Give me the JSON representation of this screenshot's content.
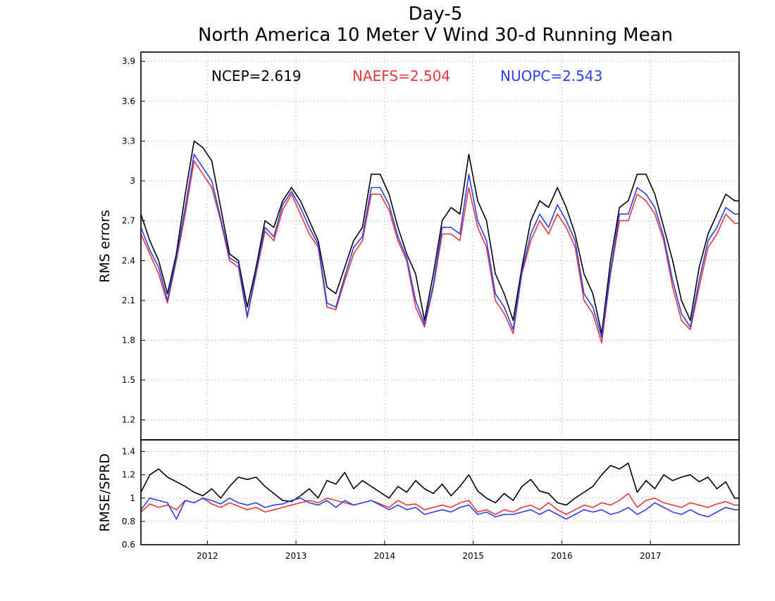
{
  "chart_data": [
    {
      "type": "line",
      "title": "Day-5",
      "subtitle": "North America 10 Meter V Wind 30-d Running Mean",
      "ylabel": "RMS errors",
      "ylim": [
        1.05,
        3.97
      ],
      "yticks": [
        1.2,
        1.5,
        1.8,
        2.1,
        2.4,
        2.7,
        3.0,
        3.3,
        3.6,
        3.9
      ],
      "ytick_labels": [
        "1.2",
        "1.5",
        "1.8",
        "2.1",
        "2.4",
        "2.7",
        "3",
        "3.3",
        "3.6",
        "3.9"
      ],
      "xlim": [
        2011.25,
        2018.0
      ],
      "grid": true,
      "legend_placement": "top (inside plot)",
      "legend": [
        {
          "label": "NCEP=2.619",
          "color": "#000000"
        },
        {
          "label": "NAEFS=2.504",
          "color": "#e8373a"
        },
        {
          "label": "NUOPC=2.543",
          "color": "#2a3ff0"
        }
      ],
      "series": [
        {
          "color": "#000000",
          "x": [
            2011.25,
            2011.35,
            2011.45,
            2011.55,
            2011.65,
            2011.75,
            2011.85,
            2011.95,
            2012.05,
            2012.15,
            2012.25,
            2012.35,
            2012.45,
            2012.55,
            2012.65,
            2012.75,
            2012.85,
            2012.95,
            2013.05,
            2013.15,
            2013.25,
            2013.35,
            2013.45,
            2013.55,
            2013.65,
            2013.75,
            2013.85,
            2013.95,
            2014.05,
            2014.15,
            2014.25,
            2014.35,
            2014.45,
            2014.55,
            2014.65,
            2014.75,
            2014.85,
            2014.95,
            2015.05,
            2015.15,
            2015.25,
            2015.35,
            2015.45,
            2015.55,
            2015.65,
            2015.75,
            2015.85,
            2015.95,
            2016.05,
            2016.15,
            2016.25,
            2016.35,
            2016.45,
            2016.55,
            2016.65,
            2016.75,
            2016.85,
            2016.95,
            2017.05,
            2017.15,
            2017.25,
            2017.35,
            2017.45,
            2017.55,
            2017.65,
            2017.75,
            2017.85,
            2017.95,
            2018.0
          ],
          "y": [
            2.75,
            2.55,
            2.4,
            2.15,
            2.45,
            2.9,
            3.3,
            3.25,
            3.15,
            2.8,
            2.45,
            2.4,
            2.05,
            2.35,
            2.7,
            2.65,
            2.85,
            2.95,
            2.85,
            2.7,
            2.55,
            2.2,
            2.15,
            2.35,
            2.55,
            2.65,
            3.05,
            3.05,
            2.9,
            2.65,
            2.45,
            2.3,
            1.95,
            2.3,
            2.7,
            2.8,
            2.75,
            3.2,
            2.85,
            2.7,
            2.3,
            2.15,
            1.95,
            2.35,
            2.7,
            2.85,
            2.8,
            2.95,
            2.8,
            2.6,
            2.3,
            2.15,
            1.85,
            2.4,
            2.8,
            2.85,
            3.05,
            3.05,
            2.9,
            2.65,
            2.4,
            2.1,
            1.95,
            2.35,
            2.6,
            2.75,
            2.9,
            2.85,
            2.85
          ]
        },
        {
          "color": "#e8373a",
          "x": [
            2011.25,
            2011.35,
            2011.45,
            2011.55,
            2011.65,
            2011.75,
            2011.85,
            2011.95,
            2012.05,
            2012.15,
            2012.25,
            2012.35,
            2012.45,
            2012.55,
            2012.65,
            2012.75,
            2012.85,
            2012.95,
            2013.05,
            2013.15,
            2013.25,
            2013.35,
            2013.45,
            2013.55,
            2013.65,
            2013.75,
            2013.85,
            2013.95,
            2014.05,
            2014.15,
            2014.25,
            2014.35,
            2014.45,
            2014.55,
            2014.65,
            2014.75,
            2014.85,
            2014.95,
            2015.05,
            2015.15,
            2015.25,
            2015.35,
            2015.45,
            2015.55,
            2015.65,
            2015.75,
            2015.85,
            2015.95,
            2016.05,
            2016.15,
            2016.25,
            2016.35,
            2016.45,
            2016.55,
            2016.65,
            2016.75,
            2016.85,
            2016.95,
            2017.05,
            2017.15,
            2017.25,
            2017.35,
            2017.45,
            2017.55,
            2017.65,
            2017.75,
            2017.85,
            2017.95,
            2018.0
          ],
          "y": [
            2.6,
            2.45,
            2.3,
            2.08,
            2.4,
            2.75,
            3.15,
            3.05,
            2.95,
            2.7,
            2.4,
            2.35,
            1.97,
            2.3,
            2.62,
            2.55,
            2.78,
            2.9,
            2.75,
            2.6,
            2.5,
            2.05,
            2.03,
            2.25,
            2.45,
            2.55,
            2.9,
            2.9,
            2.78,
            2.55,
            2.4,
            2.05,
            1.9,
            2.2,
            2.6,
            2.6,
            2.55,
            2.95,
            2.65,
            2.5,
            2.1,
            2.0,
            1.85,
            2.3,
            2.55,
            2.7,
            2.6,
            2.75,
            2.65,
            2.5,
            2.1,
            2.0,
            1.78,
            2.3,
            2.7,
            2.7,
            2.9,
            2.85,
            2.75,
            2.55,
            2.2,
            1.95,
            1.88,
            2.2,
            2.5,
            2.6,
            2.75,
            2.68,
            2.68
          ]
        },
        {
          "color": "#2a3ff0",
          "x": [
            2011.25,
            2011.35,
            2011.45,
            2011.55,
            2011.65,
            2011.75,
            2011.85,
            2011.95,
            2012.05,
            2012.15,
            2012.25,
            2012.35,
            2012.45,
            2012.55,
            2012.65,
            2012.75,
            2012.85,
            2012.95,
            2013.05,
            2013.15,
            2013.25,
            2013.35,
            2013.45,
            2013.55,
            2013.65,
            2013.75,
            2013.85,
            2013.95,
            2014.05,
            2014.15,
            2014.25,
            2014.35,
            2014.45,
            2014.55,
            2014.65,
            2014.75,
            2014.85,
            2014.95,
            2015.05,
            2015.15,
            2015.25,
            2015.35,
            2015.45,
            2015.55,
            2015.65,
            2015.75,
            2015.85,
            2015.95,
            2016.05,
            2016.15,
            2016.25,
            2016.35,
            2016.45,
            2016.55,
            2016.65,
            2016.75,
            2016.85,
            2016.95,
            2017.05,
            2017.15,
            2017.25,
            2017.35,
            2017.45,
            2017.55,
            2017.65,
            2017.75,
            2017.85,
            2017.95,
            2018.0
          ],
          "y": [
            2.65,
            2.48,
            2.35,
            2.1,
            2.42,
            2.8,
            3.2,
            3.1,
            3.0,
            2.72,
            2.42,
            2.38,
            1.98,
            2.32,
            2.65,
            2.58,
            2.82,
            2.92,
            2.8,
            2.65,
            2.52,
            2.08,
            2.05,
            2.28,
            2.5,
            2.58,
            2.95,
            2.95,
            2.82,
            2.58,
            2.42,
            2.1,
            1.92,
            2.22,
            2.65,
            2.65,
            2.6,
            3.05,
            2.7,
            2.55,
            2.15,
            2.05,
            1.88,
            2.32,
            2.6,
            2.75,
            2.65,
            2.82,
            2.7,
            2.55,
            2.15,
            2.05,
            1.82,
            2.32,
            2.75,
            2.75,
            2.95,
            2.9,
            2.8,
            2.58,
            2.25,
            2.0,
            1.9,
            2.25,
            2.55,
            2.65,
            2.8,
            2.75,
            2.75
          ]
        }
      ]
    },
    {
      "type": "line",
      "ylabel": "RMSE/SPRD",
      "ylim": [
        0.6,
        1.5
      ],
      "yticks": [
        0.6,
        0.8,
        1.0,
        1.2,
        1.4
      ],
      "ytick_labels": [
        "0.6",
        "0.8",
        "1",
        "1.2",
        "1.4"
      ],
      "xlim": [
        2011.25,
        2018.0
      ],
      "xticks": [
        2012,
        2013,
        2014,
        2015,
        2016,
        2017
      ],
      "xtick_labels": [
        "2012",
        "2013",
        "2014",
        "2015",
        "2016",
        "2017"
      ],
      "grid": true,
      "series": [
        {
          "color": "#000000",
          "x": [
            2011.25,
            2011.35,
            2011.45,
            2011.55,
            2011.65,
            2011.75,
            2011.85,
            2011.95,
            2012.05,
            2012.15,
            2012.25,
            2012.35,
            2012.45,
            2012.55,
            2012.65,
            2012.75,
            2012.85,
            2012.95,
            2013.05,
            2013.15,
            2013.25,
            2013.35,
            2013.45,
            2013.55,
            2013.65,
            2013.75,
            2013.85,
            2013.95,
            2014.05,
            2014.15,
            2014.25,
            2014.35,
            2014.45,
            2014.55,
            2014.65,
            2014.75,
            2014.85,
            2014.95,
            2015.05,
            2015.15,
            2015.25,
            2015.35,
            2015.45,
            2015.55,
            2015.65,
            2015.75,
            2015.85,
            2015.95,
            2016.05,
            2016.15,
            2016.25,
            2016.35,
            2016.45,
            2016.55,
            2016.65,
            2016.75,
            2016.85,
            2016.95,
            2017.05,
            2017.15,
            2017.25,
            2017.35,
            2017.45,
            2017.55,
            2017.65,
            2017.75,
            2017.85,
            2017.95,
            2018.0
          ],
          "y": [
            1.05,
            1.2,
            1.25,
            1.18,
            1.14,
            1.1,
            1.05,
            1.02,
            1.08,
            1.0,
            1.1,
            1.18,
            1.16,
            1.18,
            1.1,
            1.04,
            0.98,
            0.97,
            1.02,
            1.08,
            1.0,
            1.15,
            1.12,
            1.22,
            1.08,
            1.15,
            1.1,
            1.05,
            1.0,
            1.1,
            1.05,
            1.15,
            1.08,
            1.04,
            1.12,
            1.02,
            1.1,
            1.2,
            1.06,
            1.0,
            0.96,
            1.04,
            0.98,
            1.1,
            1.16,
            1.06,
            1.04,
            0.96,
            0.94,
            1.0,
            1.05,
            1.1,
            1.2,
            1.28,
            1.25,
            1.3,
            1.05,
            1.15,
            1.08,
            1.2,
            1.15,
            1.18,
            1.2,
            1.14,
            1.18,
            1.08,
            1.14,
            1.0,
            1.0
          ]
        },
        {
          "color": "#e8373a",
          "x": [
            2011.25,
            2011.35,
            2011.45,
            2011.55,
            2011.65,
            2011.75,
            2011.85,
            2011.95,
            2012.05,
            2012.15,
            2012.25,
            2012.35,
            2012.45,
            2012.55,
            2012.65,
            2012.75,
            2012.85,
            2012.95,
            2013.05,
            2013.15,
            2013.25,
            2013.35,
            2013.45,
            2013.55,
            2013.65,
            2013.75,
            2013.85,
            2013.95,
            2014.05,
            2014.15,
            2014.25,
            2014.35,
            2014.45,
            2014.55,
            2014.65,
            2014.75,
            2014.85,
            2014.95,
            2015.05,
            2015.15,
            2015.25,
            2015.35,
            2015.45,
            2015.55,
            2015.65,
            2015.75,
            2015.85,
            2015.95,
            2016.05,
            2016.15,
            2016.25,
            2016.35,
            2016.45,
            2016.55,
            2016.65,
            2016.75,
            2016.85,
            2016.95,
            2017.05,
            2017.15,
            2017.25,
            2017.35,
            2017.45,
            2017.55,
            2017.65,
            2017.75,
            2017.85,
            2017.95,
            2018.0
          ],
          "y": [
            0.88,
            0.95,
            0.92,
            0.94,
            0.9,
            0.98,
            0.96,
            1.0,
            0.95,
            0.92,
            0.96,
            0.93,
            0.9,
            0.92,
            0.88,
            0.9,
            0.92,
            0.94,
            0.96,
            0.98,
            0.96,
            1.0,
            0.98,
            0.96,
            0.94,
            0.96,
            0.98,
            0.95,
            0.92,
            0.98,
            0.94,
            0.95,
            0.9,
            0.92,
            0.94,
            0.92,
            0.96,
            0.98,
            0.88,
            0.9,
            0.86,
            0.9,
            0.88,
            0.92,
            0.94,
            0.9,
            0.96,
            0.9,
            0.86,
            0.9,
            0.94,
            0.92,
            0.96,
            0.94,
            0.98,
            1.04,
            0.92,
            0.98,
            1.0,
            0.96,
            0.94,
            0.92,
            0.96,
            0.94,
            0.92,
            0.95,
            0.97,
            0.94,
            0.94
          ]
        },
        {
          "color": "#2a3ff0",
          "x": [
            2011.25,
            2011.35,
            2011.45,
            2011.55,
            2011.65,
            2011.75,
            2011.85,
            2011.95,
            2012.05,
            2012.15,
            2012.25,
            2012.35,
            2012.45,
            2012.55,
            2012.65,
            2012.75,
            2012.85,
            2012.95,
            2013.05,
            2013.15,
            2013.25,
            2013.35,
            2013.45,
            2013.55,
            2013.65,
            2013.75,
            2013.85,
            2013.95,
            2014.05,
            2014.15,
            2014.25,
            2014.35,
            2014.45,
            2014.55,
            2014.65,
            2014.75,
            2014.85,
            2014.95,
            2015.05,
            2015.15,
            2015.25,
            2015.35,
            2015.45,
            2015.55,
            2015.65,
            2015.75,
            2015.85,
            2015.95,
            2016.05,
            2016.15,
            2016.25,
            2016.35,
            2016.45,
            2016.55,
            2016.65,
            2016.75,
            2016.85,
            2016.95,
            2017.05,
            2017.15,
            2017.25,
            2017.35,
            2017.45,
            2017.55,
            2017.65,
            2017.75,
            2017.85,
            2017.95,
            2018.0
          ],
          "y": [
            0.9,
            1.0,
            0.98,
            0.96,
            0.82,
            0.98,
            0.96,
            1.0,
            0.98,
            0.95,
            1.0,
            0.96,
            0.94,
            0.96,
            0.92,
            0.94,
            0.95,
            0.98,
            1.0,
            0.96,
            0.94,
            0.98,
            0.92,
            0.98,
            0.94,
            0.96,
            0.98,
            0.94,
            0.9,
            0.94,
            0.9,
            0.92,
            0.86,
            0.88,
            0.9,
            0.88,
            0.92,
            0.94,
            0.86,
            0.88,
            0.84,
            0.86,
            0.86,
            0.88,
            0.9,
            0.86,
            0.9,
            0.86,
            0.82,
            0.86,
            0.9,
            0.88,
            0.9,
            0.86,
            0.88,
            0.92,
            0.86,
            0.9,
            0.96,
            0.92,
            0.88,
            0.86,
            0.9,
            0.86,
            0.84,
            0.88,
            0.92,
            0.9,
            0.9
          ]
        }
      ]
    }
  ]
}
